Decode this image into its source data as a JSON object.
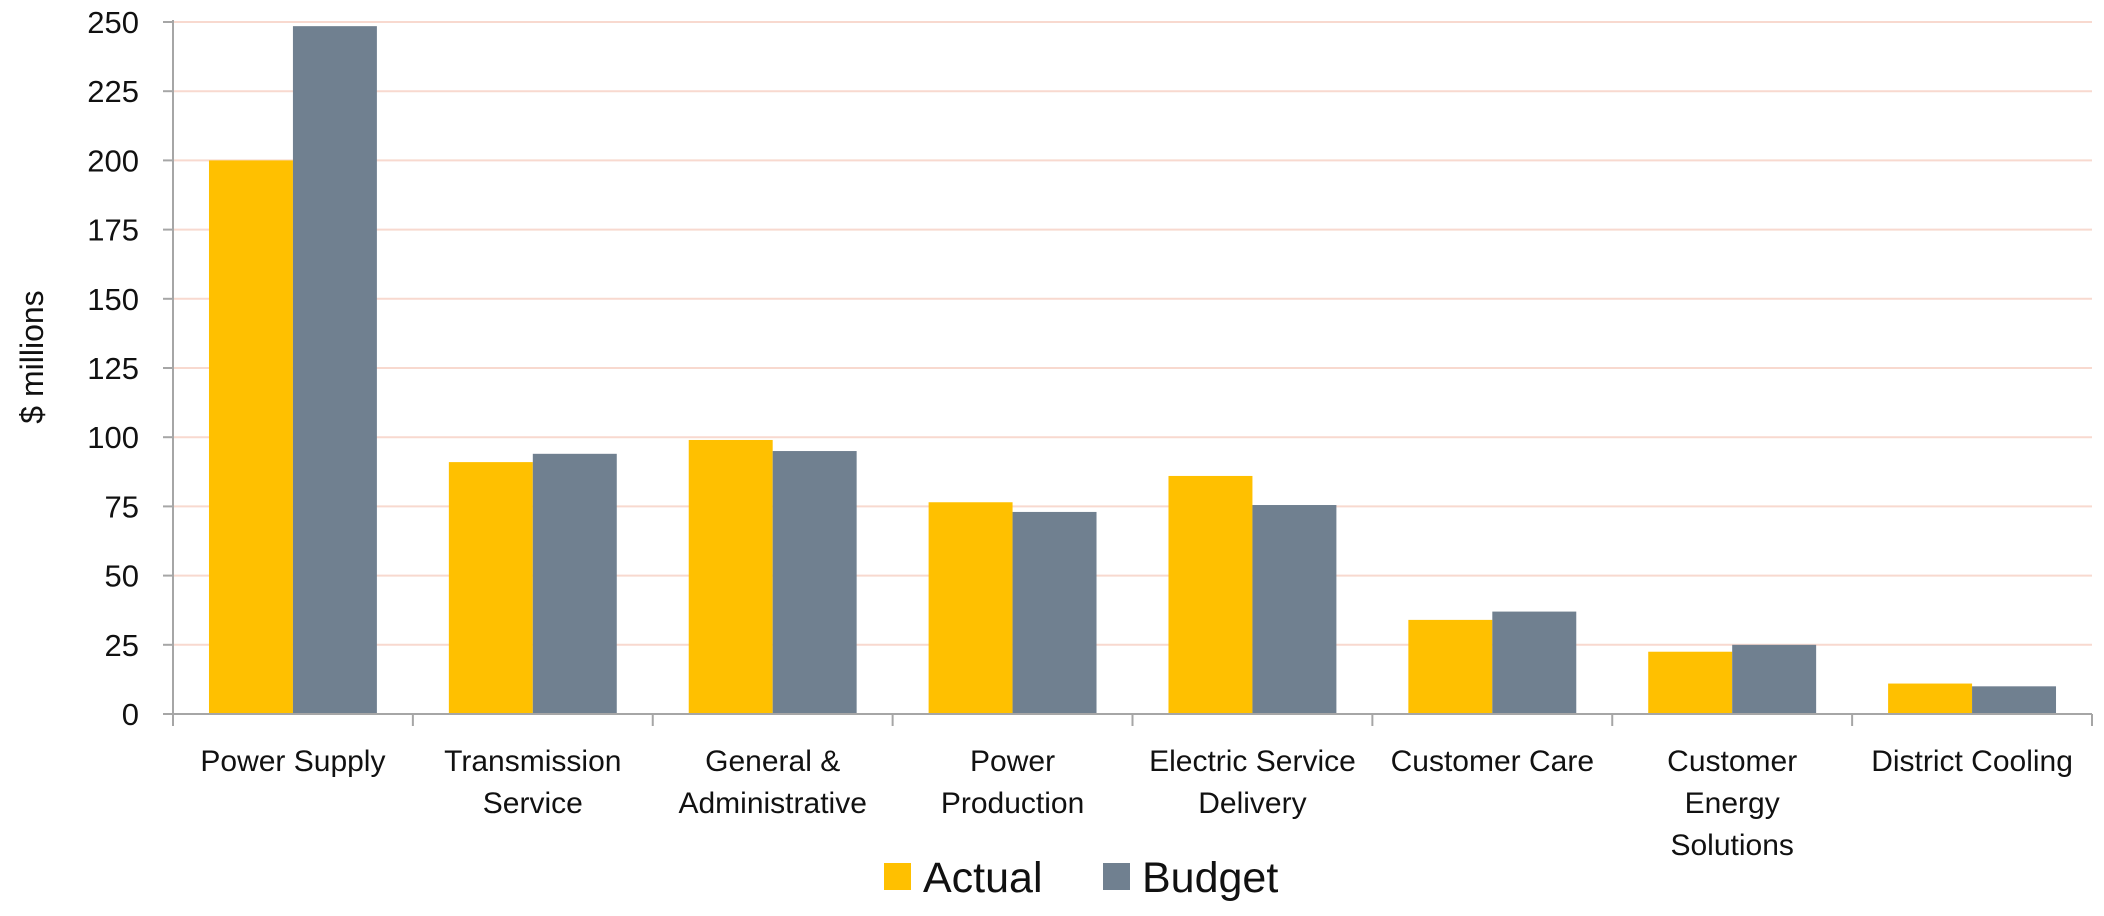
{
  "chart_data": {
    "type": "bar",
    "title": "",
    "xlabel": "",
    "ylabel": "$ millions",
    "ylim": [
      0,
      250
    ],
    "yticks": [
      0,
      25,
      50,
      75,
      100,
      125,
      150,
      175,
      200,
      225,
      250
    ],
    "grid": true,
    "legend_position": "bottom",
    "categories": [
      [
        "Power Supply"
      ],
      [
        "Transmission",
        "Service"
      ],
      [
        "General &",
        "Administrative"
      ],
      [
        "Power",
        "Production"
      ],
      [
        "Electric Service",
        "Delivery"
      ],
      [
        "Customer Care"
      ],
      [
        "Customer",
        "Energy",
        "Solutions"
      ],
      [
        "District Cooling"
      ]
    ],
    "series": [
      {
        "name": "Actual",
        "color": "#FFC000",
        "values": [
          200,
          91,
          99,
          76.5,
          86,
          34,
          22.5,
          11
        ]
      },
      {
        "name": "Budget",
        "color": "#708090",
        "values": [
          248.5,
          94,
          95,
          73,
          75.5,
          37,
          25,
          10
        ]
      }
    ],
    "colors": {
      "gridline": "#F8D9CF",
      "axis": "#A6A6A6"
    }
  }
}
